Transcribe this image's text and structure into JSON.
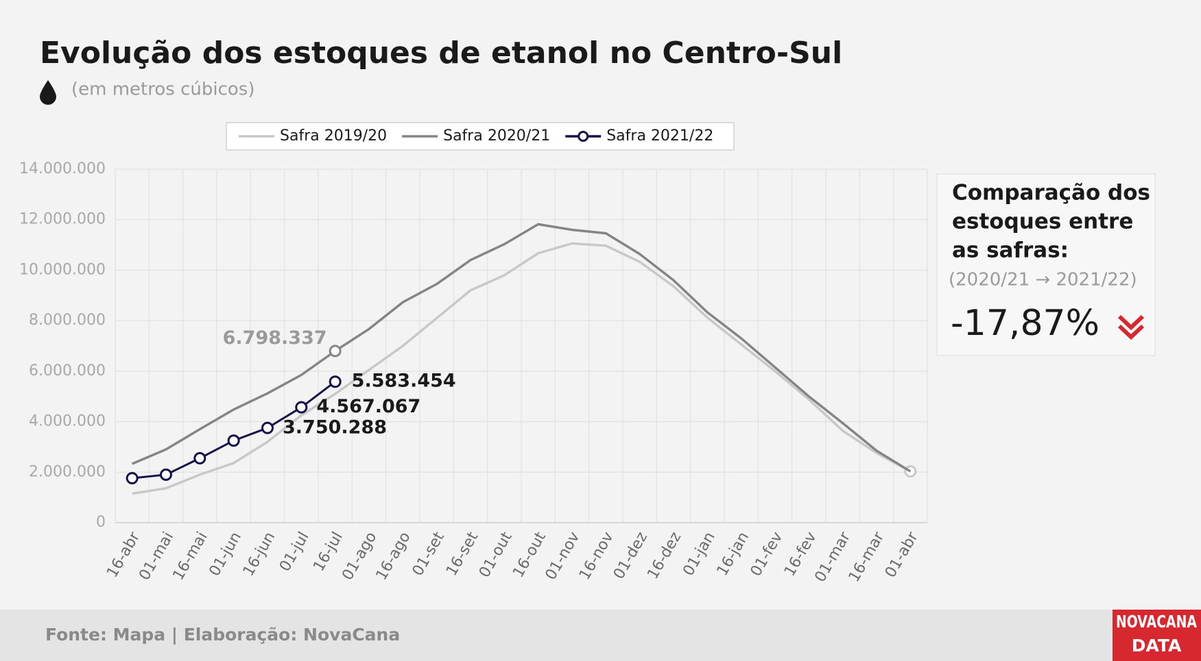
{
  "chart_data": {
    "type": "line",
    "title": "Evolução dos estoques de etanol no Centro-Sul",
    "subtitle": "(em metros cúbicos)",
    "categories": [
      "16-abr",
      "01-mai",
      "16-mai",
      "01-jun",
      "16-jun",
      "01-jul",
      "16-jul",
      "01-ago",
      "16-ago",
      "01-set",
      "16-set",
      "01-out",
      "16-out",
      "01-nov",
      "16-nov",
      "01-dez",
      "16-dez",
      "01-jan",
      "16-jan",
      "01-fev",
      "16-fev",
      "01-mar",
      "16-mar",
      "01-abr"
    ],
    "series": [
      {
        "name": "Safra 2019/20",
        "color": "#c8c8c8",
        "highlight": [
          23
        ],
        "values": [
          1150000,
          1360000,
          1900000,
          2360000,
          3200000,
          4250000,
          5100000,
          6050000,
          7000000,
          8100000,
          9200000,
          9800000,
          10670000,
          11060000,
          10970000,
          10330000,
          9360000,
          8120000,
          7060000,
          6000000,
          4880000,
          3640000,
          2760000,
          2030000
        ]
      },
      {
        "name": "Safra 2020/21",
        "color": "#858585",
        "highlight": [
          6
        ],
        "values": [
          2330000,
          2900000,
          3700000,
          4480000,
          5120000,
          5850000,
          6798337,
          7670000,
          8730000,
          9450000,
          10400000,
          11030000,
          11820000,
          11600000,
          11460000,
          10640000,
          9600000,
          8330000,
          7300000,
          6150000,
          5000000,
          3940000,
          2850000,
          2030000
        ],
        "value_labels": [
          null,
          null,
          null,
          null,
          null,
          null,
          "6.798.337",
          null,
          null,
          null,
          null,
          null,
          null,
          null,
          null,
          null,
          null,
          null,
          null,
          null,
          null,
          null,
          null,
          null
        ]
      },
      {
        "name": "Safra 2021/22",
        "color": "#14104a",
        "markers": true,
        "values": [
          1760000,
          1900000,
          2550000,
          3250000,
          3750288,
          4567067,
          5583454,
          null,
          null,
          null,
          null,
          null,
          null,
          null,
          null,
          null,
          null,
          null,
          null,
          null,
          null,
          null,
          null,
          null
        ],
        "value_labels": [
          null,
          null,
          null,
          null,
          "3.750.288",
          "4.567.067",
          "5.583.454",
          null,
          null,
          null,
          null,
          null,
          null,
          null,
          null,
          null,
          null,
          null,
          null,
          null,
          null,
          null,
          null,
          null
        ]
      }
    ],
    "ylim": [
      0,
      14000000
    ],
    "yticks": [
      0,
      {
        "value": 2000000,
        "label": "2.000.000"
      },
      {
        "value": 4000000,
        "label": "4.000.000"
      },
      {
        "value": 6000000,
        "label": "6.000.000"
      },
      {
        "value": 8000000,
        "label": "8.000.000"
      },
      {
        "value": 10000000,
        "label": "10.000.000"
      },
      {
        "value": 12000000,
        "label": "12.000.000"
      },
      {
        "value": 14000000,
        "label": "14.000.000"
      }
    ],
    "grid": true,
    "legend": "top",
    "panel": {
      "title_lines": [
        "Comparação dos",
        "estoques entre",
        "as safras:"
      ],
      "subtitle": "(2020/21 → 2021/22)",
      "value": "-17,87%"
    },
    "source": "Fonte: Mapa | Elaboração: NovaCana",
    "logo": [
      "NOVACANA",
      "DATA"
    ]
  }
}
